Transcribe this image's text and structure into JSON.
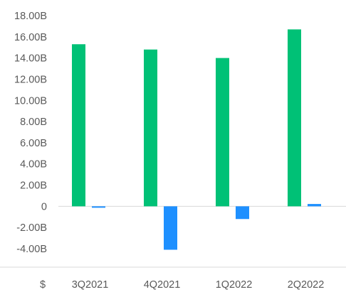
{
  "chart_data": {
    "type": "bar",
    "categories": [
      "3Q2021",
      "4Q2021",
      "1Q2022",
      "2Q2022"
    ],
    "series": [
      {
        "values": [
          15.3,
          14.8,
          14.0,
          16.7
        ],
        "color": "#00c176"
      },
      {
        "values": [
          -0.08,
          -4.1,
          -1.2,
          0.22
        ],
        "color": "#1e90ff"
      }
    ],
    "ylim": [
      -4,
      18
    ],
    "yticks": [
      18,
      16,
      14,
      12,
      10,
      8,
      6,
      4,
      2,
      0,
      -2,
      -4
    ],
    "ytick_labels": [
      "18.00B",
      "16.00B",
      "14.00B",
      "12.00B",
      "10.00B",
      "8.00B",
      "6.00B",
      "4.00B",
      "2.00B",
      "0",
      "-2.00B",
      "-4.00B"
    ],
    "currency_label": "$",
    "grid": false,
    "legend": false
  }
}
